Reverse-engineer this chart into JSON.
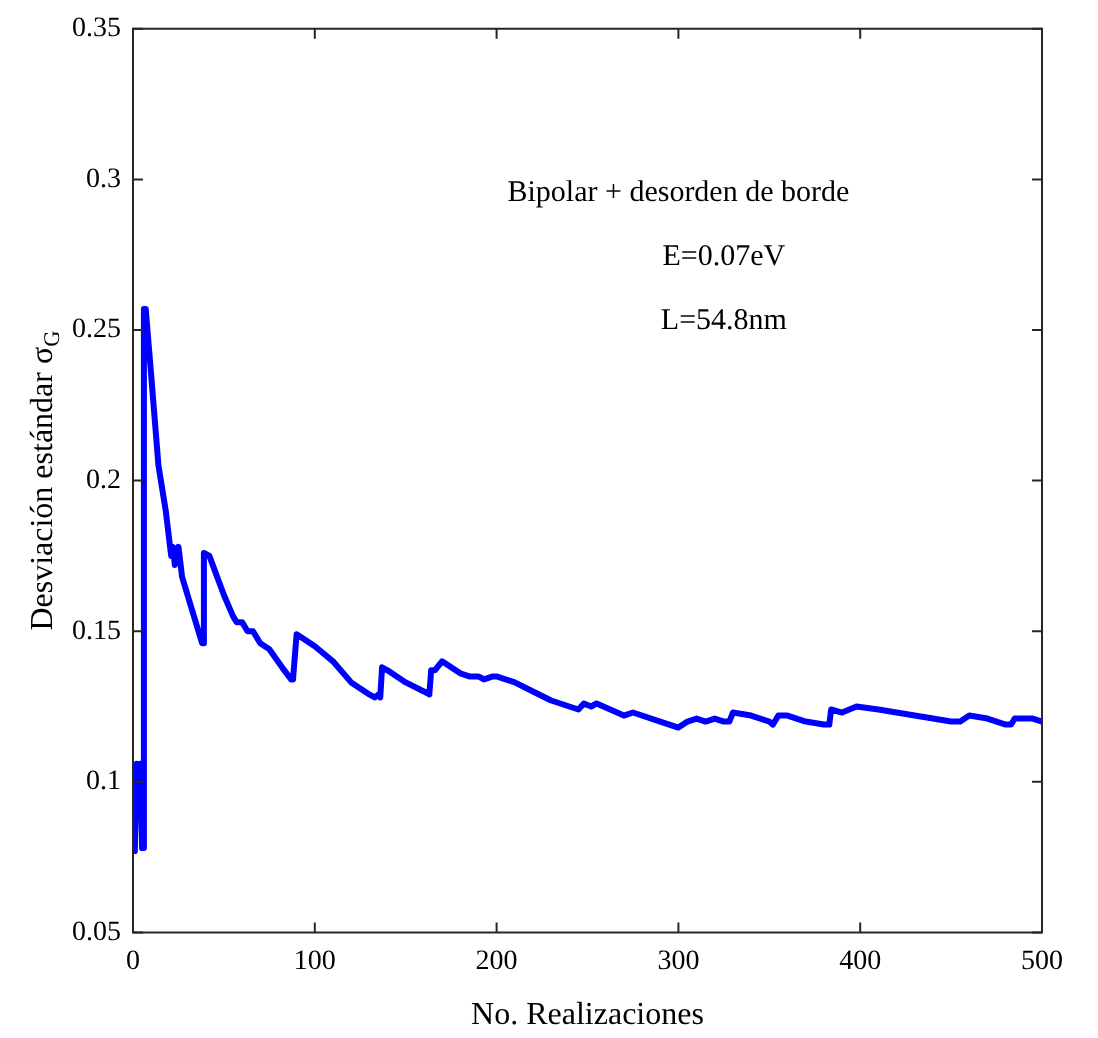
{
  "chart_data": {
    "type": "line",
    "xlabel": "No. Realizaciones",
    "ylabel": "Desviación estándar σ$_{G}$",
    "annotations": [
      "Bipolar + desorden de borde",
      "E=0.07eV",
      "L=54.8nm"
    ],
    "xlim": [
      0,
      500
    ],
    "xticks": [
      0,
      100,
      200,
      300,
      400,
      500
    ],
    "ylim": [
      0.05,
      0.35
    ],
    "yticks": [
      0.05,
      0.1,
      0.15,
      0.2,
      0.25,
      0.3,
      0.35
    ],
    "grid": false,
    "legend": false,
    "marker": "none",
    "line_style": "solid",
    "series": [
      {
        "color": "#0000ff",
        "x": [
          1,
          2,
          3,
          4,
          5,
          6,
          7,
          10,
          14,
          18,
          21,
          22,
          23,
          25,
          27,
          32,
          37,
          38,
          39,
          42,
          50,
          55,
          57,
          60,
          63,
          66,
          70,
          75,
          82,
          87,
          88,
          90,
          100,
          110,
          120,
          130,
          133,
          135,
          136,
          137,
          140,
          150,
          160,
          163,
          164,
          166,
          170,
          180,
          185,
          190,
          193,
          198,
          200,
          210,
          220,
          230,
          235,
          240,
          245,
          248,
          252,
          255,
          270,
          275,
          290,
          300,
          305,
          310,
          315,
          320,
          325,
          328,
          330,
          340,
          350,
          352,
          355,
          360,
          370,
          380,
          383,
          384,
          390,
          398,
          410,
          430,
          450,
          455,
          460,
          470,
          480,
          483,
          485,
          495,
          500
        ],
        "values": [
          0.077,
          0.106,
          0.09,
          0.106,
          0.078,
          0.257,
          0.257,
          0.235,
          0.205,
          0.19,
          0.175,
          0.178,
          0.172,
          0.178,
          0.168,
          0.158,
          0.148,
          0.146,
          0.176,
          0.175,
          0.162,
          0.155,
          0.153,
          0.153,
          0.15,
          0.15,
          0.146,
          0.144,
          0.138,
          0.134,
          0.134,
          0.149,
          0.145,
          0.14,
          0.133,
          0.129,
          0.128,
          0.129,
          0.128,
          0.138,
          0.137,
          0.133,
          0.13,
          0.129,
          0.137,
          0.137,
          0.14,
          0.136,
          0.135,
          0.135,
          0.134,
          0.135,
          0.135,
          0.133,
          0.13,
          0.127,
          0.126,
          0.125,
          0.124,
          0.126,
          0.125,
          0.126,
          0.122,
          0.123,
          0.12,
          0.118,
          0.12,
          0.121,
          0.12,
          0.121,
          0.12,
          0.12,
          0.123,
          0.122,
          0.12,
          0.119,
          0.122,
          0.122,
          0.12,
          0.119,
          0.119,
          0.124,
          0.123,
          0.125,
          0.124,
          0.122,
          0.12,
          0.12,
          0.122,
          0.121,
          0.119,
          0.119,
          0.121,
          0.121,
          0.12
        ]
      }
    ]
  }
}
